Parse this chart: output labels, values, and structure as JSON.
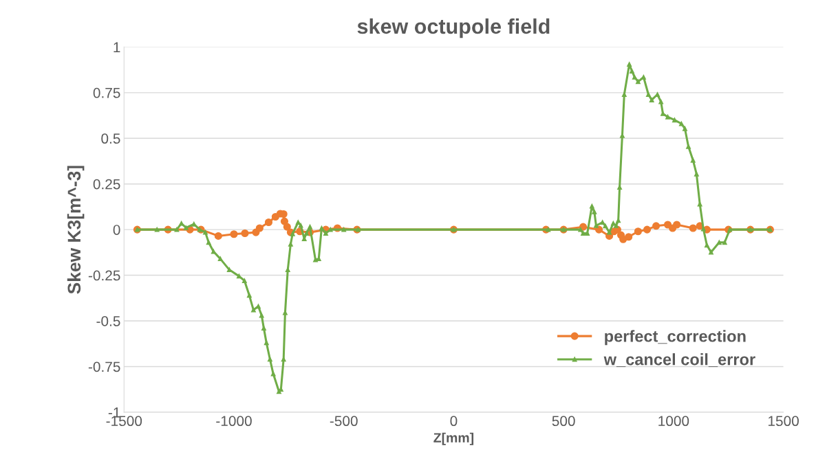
{
  "chart_data": {
    "type": "line",
    "title": "skew octupole field",
    "xlabel": "Z[mm]",
    "ylabel": "Skew K3[m^-3]",
    "xlim": [
      -1500,
      1500
    ],
    "xticks": [
      -1500,
      -1000,
      -500,
      0,
      500,
      1000,
      1500
    ],
    "ylim": [
      -1,
      1
    ],
    "yticks": [
      -1,
      -0.75,
      -0.5,
      -0.25,
      0,
      0.25,
      0.5,
      0.75,
      1
    ],
    "grid": "y",
    "legend": "bottom right",
    "line_style": "solid",
    "series": [
      {
        "name": "perfect_correction",
        "color": "#ed7d31",
        "marker": "circle",
        "x": [
          -1440,
          -1300,
          -1200,
          -1150,
          -1071,
          -1000,
          -950,
          -900,
          -883,
          -842,
          -811,
          -789,
          -774,
          -770,
          -758,
          -742,
          -700,
          -654,
          -582,
          -529,
          -440,
          0,
          420,
          500,
          589,
          661,
          708,
          729,
          745,
          761,
          771,
          796,
          839,
          880,
          921,
          974,
          996,
          1015,
          1089,
          1120,
          1152,
          1250,
          1350,
          1440
        ],
        "values": [
          0,
          0,
          0,
          0,
          -0.035,
          -0.025,
          -0.02,
          -0.015,
          0.008,
          0.04,
          0.07,
          0.087,
          0.085,
          0.045,
          0.015,
          -0.015,
          -0.01,
          -0.015,
          0,
          0.008,
          0,
          0,
          0,
          0,
          0.015,
          0,
          -0.035,
          -0.01,
          0,
          -0.03,
          -0.053,
          -0.04,
          -0.01,
          0,
          0.02,
          0.027,
          0.008,
          0.027,
          0.008,
          0.02,
          0,
          0,
          0,
          0
        ]
      },
      {
        "name": "w_cancel coil_error",
        "color": "#70ad47",
        "marker": "triangle",
        "x": [
          -1440,
          -1350,
          -1260,
          -1239,
          -1218,
          -1182,
          -1156,
          -1130,
          -1115,
          -1093,
          -1062,
          -1021,
          -977,
          -952,
          -930,
          -911,
          -889,
          -874,
          -864,
          -852,
          -836,
          -821,
          -795,
          -786,
          -774,
          -767,
          -755,
          -742,
          -733,
          -708,
          -696,
          -680,
          -670,
          -654,
          -629,
          -614,
          -601,
          -582,
          -561,
          -500,
          -435,
          0,
          430,
          500,
          577,
          589,
          608,
          629,
          640,
          648,
          677,
          690,
          708,
          726,
          739,
          749,
          755,
          767,
          776,
          799,
          811,
          823,
          839,
          864,
          886,
          901,
          927,
          943,
          952,
          974,
          1005,
          1036,
          1052,
          1068,
          1089,
          1105,
          1120,
          1136,
          1152,
          1171,
          1208,
          1233,
          1256,
          1350,
          1440
        ],
        "values": [
          0,
          0,
          0,
          0.034,
          0.01,
          0.03,
          0,
          -0.015,
          -0.07,
          -0.12,
          -0.16,
          -0.22,
          -0.255,
          -0.28,
          -0.36,
          -0.44,
          -0.42,
          -0.47,
          -0.54,
          -0.62,
          -0.71,
          -0.79,
          -0.887,
          -0.875,
          -0.71,
          -0.455,
          -0.22,
          -0.08,
          -0.023,
          0.04,
          0.023,
          -0.05,
          -0.02,
          0.015,
          -0.165,
          -0.16,
          0.008,
          -0.02,
          0,
          0,
          0,
          0,
          0,
          0,
          0,
          -0.02,
          -0.02,
          0.128,
          0.097,
          0.022,
          0.04,
          0.02,
          -0.015,
          0.034,
          0.022,
          0.05,
          0.232,
          0.515,
          0.74,
          0.905,
          0.868,
          0.835,
          0.81,
          0.835,
          0.74,
          0.71,
          0.74,
          0.7,
          0.635,
          0.617,
          0.6,
          0.58,
          0.553,
          0.455,
          0.38,
          0.304,
          0.14,
          0.004,
          -0.085,
          -0.124,
          -0.07,
          -0.07,
          0,
          0,
          0
        ]
      }
    ]
  }
}
